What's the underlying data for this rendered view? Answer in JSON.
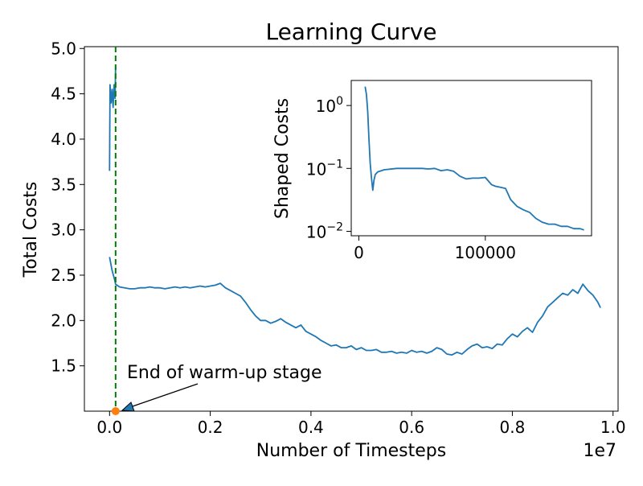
{
  "chart_data": [
    {
      "type": "line",
      "title": "Learning Curve",
      "xlabel": "Number of Timesteps",
      "ylabel": "Total Costs",
      "x_offset_label": "1e7",
      "xlim": [
        -0.05,
        1.01
      ],
      "ylim": [
        1.0,
        5.02
      ],
      "x_scale_note": "x values in units of 1e7 timesteps",
      "xticks": [
        {
          "value": 0.0,
          "label": "0.0"
        },
        {
          "value": 0.2,
          "label": "0.2"
        },
        {
          "value": 0.4,
          "label": "0.4"
        },
        {
          "value": 0.6,
          "label": "0.6"
        },
        {
          "value": 0.8,
          "label": "0.8"
        },
        {
          "value": 1.0,
          "label": "1.0"
        }
      ],
      "yticks": [
        {
          "value": 1.5,
          "label": "1.5"
        },
        {
          "value": 2.0,
          "label": "2.0"
        },
        {
          "value": 2.5,
          "label": "2.5"
        },
        {
          "value": 3.0,
          "label": "3.0"
        },
        {
          "value": 3.5,
          "label": "3.5"
        },
        {
          "value": 4.0,
          "label": "4.0"
        },
        {
          "value": 4.5,
          "label": "4.5"
        },
        {
          "value": 5.0,
          "label": "5.0"
        }
      ],
      "series": [
        {
          "name": "Total Costs",
          "color": "#1f77b4",
          "x": [
            0.0,
            0.005,
            0.01,
            0.012,
            0.02,
            0.03,
            0.04,
            0.05,
            0.06,
            0.07,
            0.08,
            0.09,
            0.1,
            0.11,
            0.12,
            0.13,
            0.14,
            0.15,
            0.16,
            0.17,
            0.18,
            0.19,
            0.2,
            0.21,
            0.22,
            0.23,
            0.24,
            0.25,
            0.26,
            0.27,
            0.28,
            0.29,
            0.3,
            0.31,
            0.32,
            0.33,
            0.34,
            0.35,
            0.36,
            0.37,
            0.38,
            0.39,
            0.4,
            0.41,
            0.42,
            0.43,
            0.44,
            0.45,
            0.46,
            0.47,
            0.48,
            0.49,
            0.5,
            0.51,
            0.52,
            0.53,
            0.54,
            0.55,
            0.56,
            0.57,
            0.58,
            0.59,
            0.6,
            0.61,
            0.62,
            0.63,
            0.64,
            0.65,
            0.66,
            0.67,
            0.68,
            0.69,
            0.7,
            0.71,
            0.72,
            0.73,
            0.74,
            0.75,
            0.76,
            0.77,
            0.78,
            0.79,
            0.8,
            0.81,
            0.82,
            0.83,
            0.84,
            0.85,
            0.86,
            0.87,
            0.88,
            0.89,
            0.9,
            0.91,
            0.92,
            0.93,
            0.94,
            0.95,
            0.96,
            0.97,
            0.975
          ],
          "values": [
            2.7,
            2.55,
            2.45,
            2.4,
            2.37,
            2.36,
            2.35,
            2.35,
            2.36,
            2.36,
            2.37,
            2.36,
            2.36,
            2.35,
            2.36,
            2.37,
            2.36,
            2.37,
            2.36,
            2.37,
            2.38,
            2.37,
            2.38,
            2.39,
            2.41,
            2.36,
            2.33,
            2.3,
            2.27,
            2.2,
            2.12,
            2.05,
            2.0,
            2.0,
            1.97,
            1.99,
            2.02,
            1.98,
            1.95,
            1.92,
            1.95,
            1.88,
            1.85,
            1.82,
            1.78,
            1.75,
            1.72,
            1.73,
            1.7,
            1.7,
            1.72,
            1.68,
            1.7,
            1.67,
            1.67,
            1.68,
            1.65,
            1.65,
            1.66,
            1.64,
            1.65,
            1.64,
            1.67,
            1.65,
            1.66,
            1.64,
            1.66,
            1.7,
            1.68,
            1.63,
            1.62,
            1.65,
            1.63,
            1.68,
            1.72,
            1.74,
            1.7,
            1.71,
            1.69,
            1.74,
            1.73,
            1.8,
            1.85,
            1.82,
            1.88,
            1.92,
            1.87,
            1.98,
            2.05,
            2.15,
            2.2,
            2.25,
            2.3,
            2.28,
            2.34,
            2.3,
            2.4,
            2.33,
            2.28,
            2.2,
            2.14
          ]
        },
        {
          "name": "Warm-up stage",
          "color": "#1f77b4",
          "x": [
            0.0,
            0.001,
            0.003,
            0.005,
            0.007,
            0.009,
            0.011,
            0.012
          ],
          "values": [
            3.65,
            4.6,
            4.4,
            4.55,
            4.35,
            4.6,
            4.45,
            4.8
          ]
        }
      ],
      "warmup_line": {
        "x": 0.012,
        "style": "dashed",
        "color": "#008000"
      },
      "marker": {
        "x": 0.012,
        "y": 1.0,
        "color": "#ff7f0e"
      },
      "annotation": {
        "text": "End of warm-up stage",
        "arrow_to_x": 0.012,
        "arrow_to_y": 1.0
      }
    },
    {
      "type": "line",
      "title": "",
      "xlabel": "",
      "ylabel": "Shaped Costs",
      "y_scale": "log",
      "xlim": [
        -6000,
        184000
      ],
      "ylim": [
        0.0085,
        2.5
      ],
      "xticks": [
        {
          "value": 0,
          "label": "0"
        },
        {
          "value": 100000,
          "label": "100000"
        }
      ],
      "yticks": [
        {
          "value": 1,
          "base": "10",
          "exponent": "0"
        },
        {
          "value": 0.1,
          "base": "10",
          "exponent": "−1"
        },
        {
          "value": 0.01,
          "base": "10",
          "exponent": "−2"
        }
      ],
      "series": [
        {
          "name": "Shaped Costs",
          "color": "#1f77b4",
          "x": [
            5000,
            6000,
            7000,
            8000,
            9000,
            10000,
            11000,
            12000,
            13000,
            15000,
            20000,
            30000,
            40000,
            50000,
            55000,
            60000,
            65000,
            70000,
            75000,
            80000,
            85000,
            90000,
            95000,
            100000,
            105000,
            108000,
            112000,
            116000,
            120000,
            125000,
            130000,
            135000,
            140000,
            145000,
            150000,
            155000,
            160000,
            165000,
            170000,
            175000,
            178000
          ],
          "values": [
            2.0,
            1.5,
            0.8,
            0.3,
            0.12,
            0.07,
            0.045,
            0.065,
            0.08,
            0.088,
            0.095,
            0.1,
            0.1,
            0.1,
            0.098,
            0.1,
            0.092,
            0.095,
            0.09,
            0.075,
            0.068,
            0.07,
            0.07,
            0.072,
            0.055,
            0.052,
            0.05,
            0.048,
            0.032,
            0.025,
            0.022,
            0.02,
            0.016,
            0.014,
            0.013,
            0.013,
            0.012,
            0.012,
            0.011,
            0.011,
            0.0105
          ]
        }
      ]
    }
  ]
}
